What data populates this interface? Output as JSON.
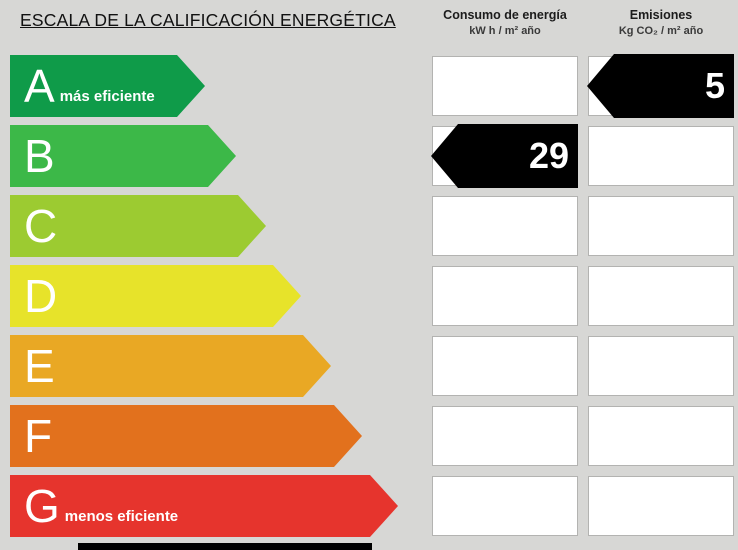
{
  "header": {
    "title": "ESCALA DE LA CALIFICACIÓN ENERGÉTICA",
    "consumo_title": "Consumo de energía",
    "consumo_subtitle": "kW h / m² año",
    "emisiones_title": "Emisiones",
    "emisiones_subtitle": "Kg CO₂ / m² año"
  },
  "rows": [
    {
      "letter": "A",
      "suffix": "más eficiente",
      "color": "#0f9b49",
      "consumo": "",
      "emisiones": "5"
    },
    {
      "letter": "B",
      "suffix": "",
      "color": "#3cb848",
      "consumo": "29",
      "emisiones": ""
    },
    {
      "letter": "C",
      "suffix": "",
      "color": "#9ccb31",
      "consumo": "",
      "emisiones": ""
    },
    {
      "letter": "D",
      "suffix": "",
      "color": "#e7e32a",
      "consumo": "",
      "emisiones": ""
    },
    {
      "letter": "E",
      "suffix": "",
      "color": "#e9a824",
      "consumo": "",
      "emisiones": ""
    },
    {
      "letter": "F",
      "suffix": "",
      "color": "#e2711d",
      "consumo": "",
      "emisiones": ""
    },
    {
      "letter": "G",
      "suffix": "menos eficiente",
      "color": "#e6342d",
      "consumo": "",
      "emisiones": ""
    }
  ],
  "colors": {
    "background": "#d7d7d5",
    "box_background": "#ffffff",
    "indicator": "#000000",
    "text_on_arrow": "#ffffff"
  },
  "chart_data": {
    "type": "bar",
    "title": "ESCALA DE LA CALIFICACIÓN ENERGÉTICA",
    "categories": [
      "A",
      "B",
      "C",
      "D",
      "E",
      "F",
      "G"
    ],
    "category_colors": [
      "#0f9b49",
      "#3cb848",
      "#9ccb31",
      "#e7e32a",
      "#e9a824",
      "#e2711d",
      "#e6342d"
    ],
    "annotations": [
      "A = más eficiente",
      "G = menos eficiente"
    ],
    "columns": [
      "Consumo de energía (kW h / m² año)",
      "Emisiones (Kg CO₂ / m² año)"
    ],
    "values": {
      "consumo_energia": {
        "rating": "B",
        "value": 29,
        "unit": "kW h / m² año"
      },
      "emisiones": {
        "rating": "A",
        "value": 5,
        "unit": "Kg CO₂ / m² año"
      }
    }
  }
}
